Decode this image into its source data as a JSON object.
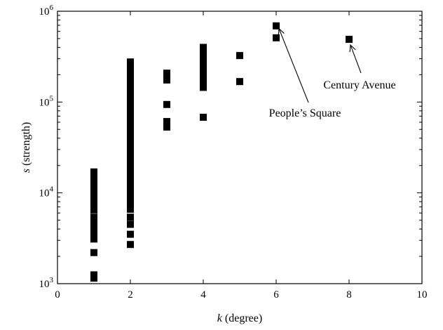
{
  "chart_data": {
    "type": "scatter",
    "title": "",
    "xlabel": {
      "italic": "k",
      "rest": " (degree)"
    },
    "ylabel": {
      "italic": "s",
      "rest": " (strength)"
    },
    "xlim": [
      0,
      10
    ],
    "ylim": [
      1000,
      1000000
    ],
    "yscale": "log",
    "xticks": [
      0,
      2,
      4,
      6,
      8,
      10
    ],
    "xtick_labels": [
      "0",
      "2",
      "4",
      "6",
      "8",
      "10"
    ],
    "yticks": [
      1000,
      10000,
      100000,
      1000000
    ],
    "ytick_labels": [
      {
        "base": "10",
        "exp": "3"
      },
      {
        "base": "10",
        "exp": "4"
      },
      {
        "base": "10",
        "exp": "5"
      },
      {
        "base": "10",
        "exp": "6"
      }
    ],
    "grid": false,
    "legend": "none",
    "marker": "square",
    "marker_color": "#000000",
    "points": [
      {
        "x": 1,
        "y": 1150
      },
      {
        "x": 1,
        "y": 1250
      },
      {
        "x": 1,
        "y": 2200
      },
      {
        "x": 1,
        "y": 3100
      },
      {
        "x": 1,
        "y": 3500
      },
      {
        "x": 1,
        "y": 3900
      },
      {
        "x": 1,
        "y": 4300
      },
      {
        "x": 1,
        "y": 4900
      },
      {
        "x": 1,
        "y": 5400
      },
      {
        "x": 1,
        "y": 6500
      },
      {
        "x": 1,
        "y": 7500
      },
      {
        "x": 1,
        "y": 8700
      },
      {
        "x": 1,
        "y": 9800
      },
      {
        "x": 1,
        "y": 10800
      },
      {
        "x": 1,
        "y": 12000
      },
      {
        "x": 1,
        "y": 13500
      },
      {
        "x": 1,
        "y": 15200
      },
      {
        "x": 1,
        "y": 17000
      },
      {
        "x": 2,
        "y": 2700
      },
      {
        "x": 2,
        "y": 3500
      },
      {
        "x": 2,
        "y": 4500
      },
      {
        "x": 2,
        "y": 5400
      },
      {
        "x": 2,
        "y": 6600
      },
      {
        "x": 2,
        "y": 7200
      },
      {
        "x": 2,
        "y": 7900
      },
      {
        "x": 2,
        "y": 8700
      },
      {
        "x": 2,
        "y": 9600
      },
      {
        "x": 2,
        "y": 10600
      },
      {
        "x": 2,
        "y": 11700
      },
      {
        "x": 2,
        "y": 12900
      },
      {
        "x": 2,
        "y": 14200
      },
      {
        "x": 2,
        "y": 15700
      },
      {
        "x": 2,
        "y": 17300
      },
      {
        "x": 2,
        "y": 19100
      },
      {
        "x": 2,
        "y": 21100
      },
      {
        "x": 2,
        "y": 23300
      },
      {
        "x": 2,
        "y": 25700
      },
      {
        "x": 2,
        "y": 28400
      },
      {
        "x": 2,
        "y": 31300
      },
      {
        "x": 2,
        "y": 34600
      },
      {
        "x": 2,
        "y": 38200
      },
      {
        "x": 2,
        "y": 42100
      },
      {
        "x": 2,
        "y": 46500
      },
      {
        "x": 2,
        "y": 51300
      },
      {
        "x": 2,
        "y": 56700
      },
      {
        "x": 2,
        "y": 62600
      },
      {
        "x": 2,
        "y": 69100
      },
      {
        "x": 2,
        "y": 76300
      },
      {
        "x": 2,
        "y": 84200
      },
      {
        "x": 2,
        "y": 93000
      },
      {
        "x": 2,
        "y": 102700
      },
      {
        "x": 2,
        "y": 113400
      },
      {
        "x": 2,
        "y": 125200
      },
      {
        "x": 2,
        "y": 138200
      },
      {
        "x": 2,
        "y": 152600
      },
      {
        "x": 2,
        "y": 168500
      },
      {
        "x": 2,
        "y": 186000
      },
      {
        "x": 2,
        "y": 205400
      },
      {
        "x": 2,
        "y": 226800
      },
      {
        "x": 2,
        "y": 250400
      },
      {
        "x": 2,
        "y": 276500
      },
      {
        "x": 3,
        "y": 53000
      },
      {
        "x": 3,
        "y": 57000
      },
      {
        "x": 3,
        "y": 61000
      },
      {
        "x": 3,
        "y": 94000
      },
      {
        "x": 3,
        "y": 175000
      },
      {
        "x": 3,
        "y": 195000
      },
      {
        "x": 3,
        "y": 208000
      },
      {
        "x": 4,
        "y": 68000
      },
      {
        "x": 4,
        "y": 145000
      },
      {
        "x": 4,
        "y": 158000
      },
      {
        "x": 4,
        "y": 172000
      },
      {
        "x": 4,
        "y": 188000
      },
      {
        "x": 4,
        "y": 205000
      },
      {
        "x": 4,
        "y": 224000
      },
      {
        "x": 4,
        "y": 244000
      },
      {
        "x": 4,
        "y": 266000
      },
      {
        "x": 4,
        "y": 290000
      },
      {
        "x": 4,
        "y": 316000
      },
      {
        "x": 4,
        "y": 345000
      },
      {
        "x": 4,
        "y": 376000
      },
      {
        "x": 4,
        "y": 400000
      },
      {
        "x": 5,
        "y": 168000
      },
      {
        "x": 5,
        "y": 325000
      },
      {
        "x": 6,
        "y": 510000
      },
      {
        "x": 6,
        "y": 690000
      },
      {
        "x": 8,
        "y": 490000
      }
    ],
    "annotations": [
      {
        "text": "People’s Square",
        "point": {
          "x": 6,
          "y": 690000
        }
      },
      {
        "text": "Century Avenue",
        "point": {
          "x": 8,
          "y": 490000
        }
      }
    ]
  }
}
